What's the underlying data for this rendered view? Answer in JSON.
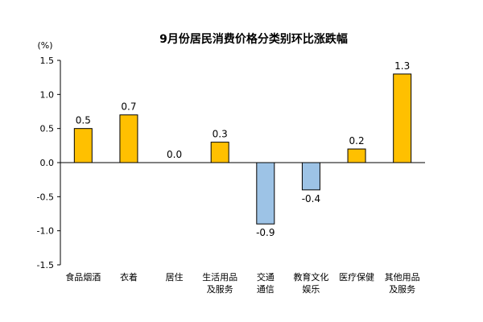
{
  "chart_data": {
    "type": "bar",
    "title": "9月份居民消费价格分类别环比涨跌幅",
    "ylabel": "(%)",
    "xlabel": "",
    "ylim": [
      -1.5,
      1.5
    ],
    "yticks": [
      "1.5",
      "1.0",
      "0.5",
      "0.0",
      "-0.5",
      "-1.0",
      "-1.5"
    ],
    "categories": [
      [
        "食品烟酒"
      ],
      [
        "衣着"
      ],
      [
        "居住"
      ],
      [
        "生活用品",
        "及服务"
      ],
      [
        "交通",
        "通信"
      ],
      [
        "教育文化",
        "娱乐"
      ],
      [
        "医疗保健"
      ],
      [
        "其他用品",
        "及服务"
      ]
    ],
    "values": [
      0.5,
      0.7,
      0.0,
      0.3,
      -0.9,
      -0.4,
      0.2,
      1.3
    ],
    "labels": [
      "0.5",
      "0.7",
      "0.0",
      "0.3",
      "-0.9",
      "-0.4",
      "0.2",
      "1.3"
    ],
    "positive_color": "#FFC000",
    "negative_color": "#9DC3E6",
    "bar_stroke": "#000000",
    "grid": false
  }
}
